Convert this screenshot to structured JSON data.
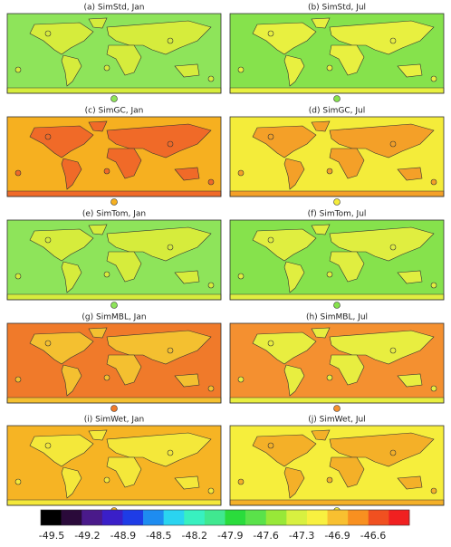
{
  "panels": [
    {
      "title": "(a) SimStd, Jan",
      "ocean_color": "#8ee45a",
      "land_color": "#d6ec3c"
    },
    {
      "title": "(b) SimStd, Jul",
      "ocean_color": "#86e24c",
      "land_color": "#e8f040"
    },
    {
      "title": "(c) SimGC, Jan",
      "ocean_color": "#f6b020",
      "land_color": "#f06a28"
    },
    {
      "title": "(d) SimGC, Jul",
      "ocean_color": "#f4ec3a",
      "land_color": "#f4a028"
    },
    {
      "title": "(e) SimTom, Jan",
      "ocean_color": "#8ee45a",
      "land_color": "#d6ec3c"
    },
    {
      "title": "(f) SimTom, Jul",
      "ocean_color": "#86e24c",
      "land_color": "#e0ee40"
    },
    {
      "title": "(g) SimMBL, Jan",
      "ocean_color": "#f07a2a",
      "land_color": "#f4c030"
    },
    {
      "title": "(h) SimMBL, Jul",
      "ocean_color": "#f49030",
      "land_color": "#e8ee40"
    },
    {
      "title": "(i) SimWet, Jan",
      "ocean_color": "#f6b424",
      "land_color": "#f4e83a"
    },
    {
      "title": "(j) SimWet, Jul",
      "ocean_color": "#f6ee3c",
      "land_color": "#f4b028"
    }
  ],
  "colorbar": {
    "colors": [
      "#000000",
      "#2a0a3a",
      "#4a1a8a",
      "#3a1fc8",
      "#1e3ce6",
      "#1e8cf0",
      "#2ad4f0",
      "#38f0c0",
      "#40e890",
      "#2adc3c",
      "#5ae24a",
      "#98e838",
      "#d8f040",
      "#f8f040",
      "#f8c030",
      "#f89020",
      "#f05020",
      "#f02020"
    ],
    "ticks": [
      -49.5,
      -49.2,
      -48.9,
      -48.5,
      -48.2,
      -47.9,
      -47.6,
      -47.3,
      -46.9,
      -46.6
    ]
  }
}
